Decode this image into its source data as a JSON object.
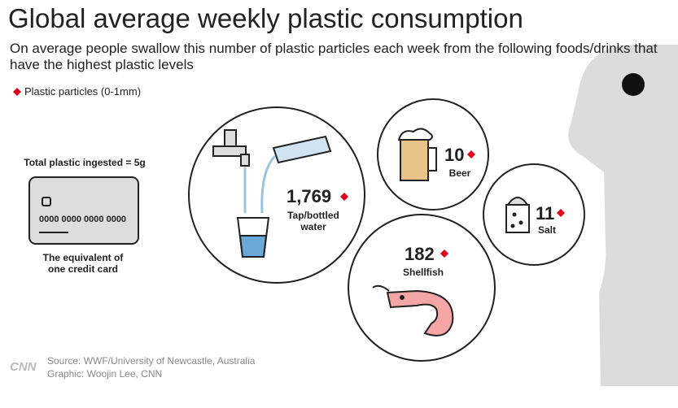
{
  "header": {
    "title": "Global average weekly plastic consumption",
    "subtitle": "On average people swallow this number of plastic particles each week from the following foods/drinks that have the highest plastic levels"
  },
  "legend": {
    "label": "Plastic particles (0-1mm)"
  },
  "card": {
    "total": "Total plastic ingested = 5g",
    "number": "0000 0000 0000 0000",
    "caption": "The equivalent of one credit card"
  },
  "items": [
    {
      "value": "1,769",
      "name": "Tap/bottled water"
    },
    {
      "value": "10",
      "name": "Beer"
    },
    {
      "value": "11",
      "name": "Salt"
    },
    {
      "value": "182",
      "name": "Shellfish"
    }
  ],
  "footer": {
    "logo": "CNN",
    "source": "Source: WWF/University of Newcastle, Australia",
    "credit": "Graphic: Woojin Lee, CNN"
  }
}
